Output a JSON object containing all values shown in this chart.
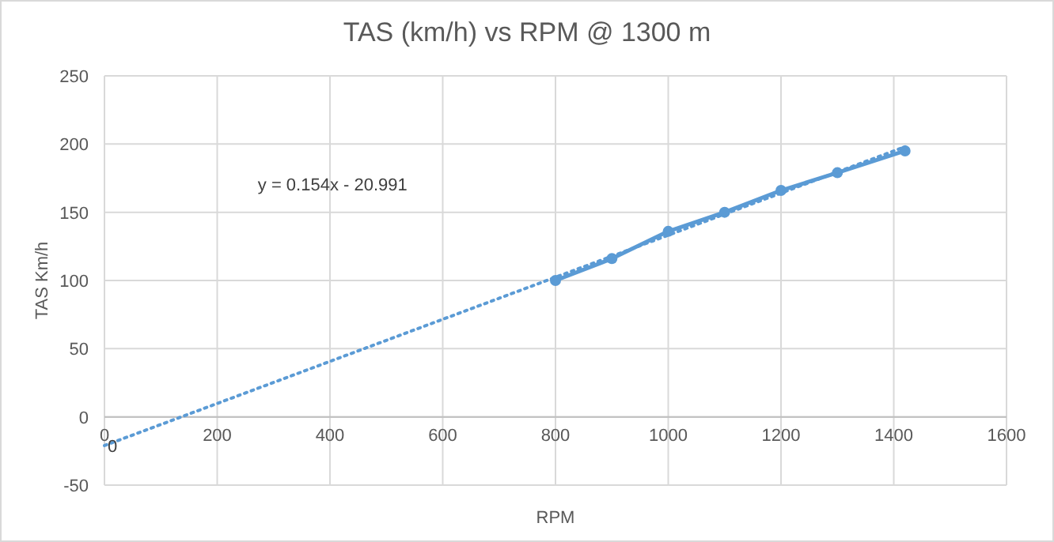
{
  "chart_data": {
    "type": "line",
    "title": "TAS (km/h) vs RPM @ 1300 m",
    "xlabel": "RPM",
    "ylabel": "TAS Km/h",
    "xlim": [
      0,
      1600
    ],
    "xticks": [
      0,
      200,
      400,
      600,
      800,
      1000,
      1200,
      1400,
      1600
    ],
    "ylim": [
      -50,
      250
    ],
    "yticks": [
      -50,
      0,
      50,
      100,
      150,
      200,
      250
    ],
    "grid": true,
    "series": [
      {
        "color": "#5b9bd5",
        "x": [
          800,
          900,
          1000,
          1100,
          1200,
          1300,
          1420
        ],
        "values": [
          100,
          116,
          136,
          150,
          166,
          179,
          195
        ],
        "marker": "circle",
        "line_style": "solid"
      },
      {
        "color": "#5b9bd5",
        "x": [
          0,
          1420
        ],
        "values": [
          -21,
          198
        ],
        "marker": "none",
        "line_style": "dotted"
      }
    ],
    "annotations": [
      "y = 0.154x - 20.991",
      {
        "text": "0",
        "x": 0,
        "y": -21
      }
    ]
  }
}
